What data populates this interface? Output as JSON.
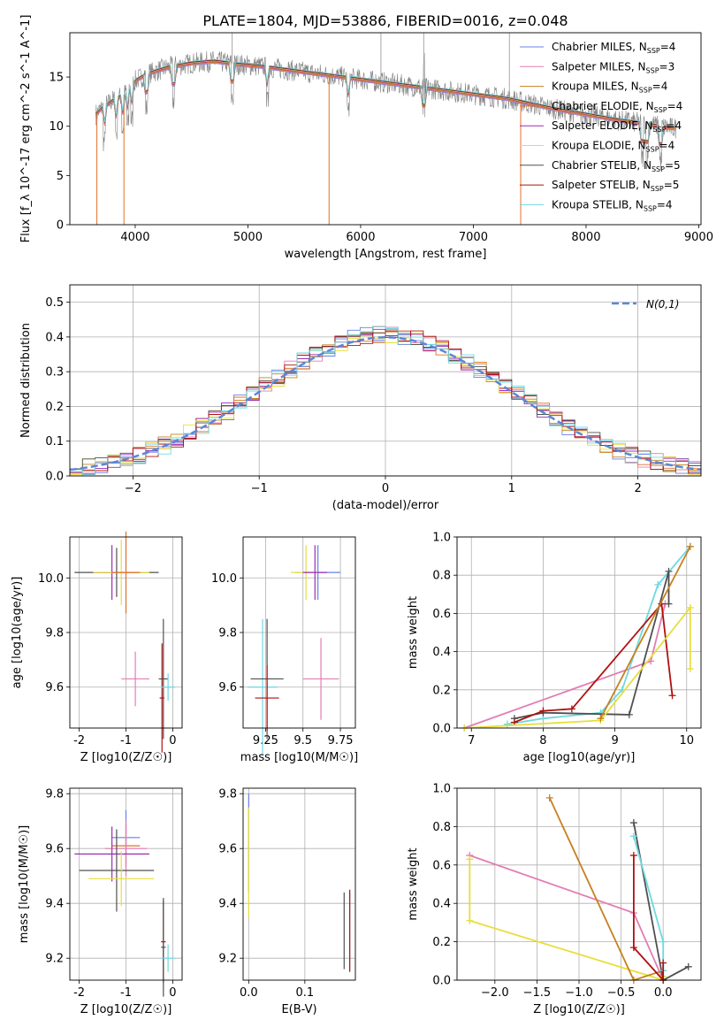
{
  "figure_title": "PLATE=1804, MJD=53886, FIBERID=0016, z=0.048",
  "series_colors": [
    "#6a7fe6",
    "#e37db4",
    "#c7801e",
    "#e0702a",
    "#9b2db5",
    "#e8de3a",
    "#505050",
    "#b01010",
    "#6ed9e0"
  ],
  "chart_data": [
    {
      "id": "spectrum",
      "type": "line",
      "xlabel": "wavelength [Angstrom, rest frame]",
      "ylabel": "Flux [f_λ 10^-17 erg cm^-2 s^-1 A^-1]",
      "xlim": [
        3420,
        9020
      ],
      "ylim": [
        0,
        19.5
      ],
      "xticks": [
        4000,
        5000,
        6000,
        7000,
        8000,
        9000
      ],
      "yticks": [
        0,
        5,
        10,
        15
      ],
      "legend_position": "upper-right",
      "legend": [
        {
          "name": "Chabrier MILES",
          "nssp": "4"
        },
        {
          "name": "Salpeter MILES",
          "nssp": "3"
        },
        {
          "name": "Kroupa MILES",
          "nssp": "4"
        },
        {
          "name": "Chabrier ELODIE",
          "nssp": "4"
        },
        {
          "name": "Salpeter ELODIE",
          "nssp": "4"
        },
        {
          "name": "Kroupa ELODIE",
          "nssp": "4"
        },
        {
          "name": "Chabrier STELIB",
          "nssp": "5"
        },
        {
          "name": "Salpeter STELIB",
          "nssp": "5"
        },
        {
          "name": "Kroupa STELIB",
          "nssp": "4"
        }
      ],
      "continuum": {
        "x": [
          3650,
          3700,
          3800,
          3900,
          4000,
          4100,
          4300,
          4500,
          4700,
          4900,
          5100,
          5300,
          5500,
          5700,
          5900,
          6100,
          6300,
          6500,
          6700,
          6900,
          7100,
          7300,
          7500,
          7700,
          7900,
          8100,
          8300,
          8500,
          8700,
          8800
        ],
        "y": [
          11.2,
          11.8,
          12.6,
          13.2,
          14.6,
          15.3,
          16.0,
          16.4,
          16.6,
          16.3,
          16.1,
          15.8,
          15.5,
          15.2,
          14.9,
          14.6,
          14.3,
          14.0,
          13.7,
          13.4,
          13.1,
          12.8,
          12.3,
          11.8,
          11.4,
          11.0,
          10.6,
          10.3,
          9.9,
          9.8
        ]
      },
      "data_line_color": "#808080"
    },
    {
      "id": "residuals",
      "type": "histogram",
      "xlabel": "(data-model)/error",
      "ylabel": "Normed distribution",
      "xlim": [
        -2.5,
        2.5
      ],
      "ylim": [
        0,
        0.55
      ],
      "xticks": [
        -2,
        -1,
        0,
        1,
        2
      ],
      "yticks": [
        0.0,
        0.1,
        0.2,
        0.3,
        0.4,
        0.5
      ],
      "legend_label": "N(0,1)",
      "legend_position": "upper-right",
      "bin_width": 0.1,
      "reference_curve": "gaussian(0,1)",
      "reference_color": "#5b87d6"
    },
    {
      "id": "age_vs_Z",
      "type": "errorbar",
      "xlabel": "Z [log10(Z/Z☉)]",
      "ylabel": "age  [log10(age/yr)]",
      "xlim": [
        -2.2,
        0.2
      ],
      "ylim": [
        9.45,
        10.15
      ],
      "xticks": [
        -2,
        -1,
        0
      ],
      "yticks": [
        9.6,
        9.8,
        10.0
      ],
      "points": [
        {
          "x": -1.2,
          "y": 10.02,
          "xerr": 0.9,
          "yerr": 0.09,
          "color": "#505050"
        },
        {
          "x": -1.3,
          "y": 10.02,
          "xerr": 0.4,
          "yerr": 0.1,
          "color": "#9b2db5"
        },
        {
          "x": -1.1,
          "y": 10.02,
          "xerr": 0.6,
          "yerr": 0.12,
          "color": "#e8de3a"
        },
        {
          "x": -1.0,
          "y": 10.02,
          "xerr": 0.3,
          "yerr": 0.15,
          "color": "#e0702a"
        },
        {
          "x": -0.8,
          "y": 9.63,
          "xerr": 0.3,
          "yerr": 0.1,
          "color": "#e37db4"
        },
        {
          "x": -0.23,
          "y": 9.56,
          "xerr": 0.05,
          "yerr": 0.2,
          "color": "#b01010"
        },
        {
          "x": -0.2,
          "y": 9.63,
          "xerr": 0.1,
          "yerr": 0.22,
          "color": "#505050"
        },
        {
          "x": -0.1,
          "y": 9.6,
          "xerr": 0.15,
          "yerr": 0.05,
          "color": "#6ed9e0"
        }
      ]
    },
    {
      "id": "age_vs_mass",
      "type": "errorbar",
      "xlabel": "mass [log10(M/M☉)]",
      "ylabel": "",
      "xlim": [
        9.1,
        9.85
      ],
      "ylim": [
        9.45,
        10.15
      ],
      "xticks": [
        9.25,
        9.5,
        9.75
      ],
      "yticks": [
        9.6,
        9.8,
        10.0
      ],
      "points": [
        {
          "x": 9.6,
          "y": 10.02,
          "xerr": 0.15,
          "yerr": 0.1,
          "color": "#6a7fe6"
        },
        {
          "x": 9.52,
          "y": 10.02,
          "xerr": 0.1,
          "yerr": 0.1,
          "color": "#e8de3a"
        },
        {
          "x": 9.58,
          "y": 10.02,
          "xerr": 0.08,
          "yerr": 0.1,
          "color": "#9b2db5"
        },
        {
          "x": 9.62,
          "y": 9.63,
          "xerr": 0.12,
          "yerr": 0.15,
          "color": "#e37db4"
        },
        {
          "x": 9.23,
          "y": 9.6,
          "xerr": 0.1,
          "yerr": 0.25,
          "color": "#6ed9e0"
        },
        {
          "x": 9.26,
          "y": 9.63,
          "xerr": 0.11,
          "yerr": 0.22,
          "color": "#505050"
        },
        {
          "x": 9.26,
          "y": 9.56,
          "xerr": 0.08,
          "yerr": 0.12,
          "color": "#b01010"
        }
      ]
    },
    {
      "id": "weight_vs_age",
      "type": "line",
      "xlabel": "age  [log10(age/yr)]",
      "ylabel": "mass weight",
      "xlim": [
        6.8,
        10.2
      ],
      "ylim": [
        0,
        1.0
      ],
      "xticks": [
        7,
        8,
        9,
        10
      ],
      "yticks": [
        0.0,
        0.2,
        0.4,
        0.6,
        0.8,
        1.0
      ],
      "series": [
        {
          "color": "#e37db4",
          "x": [
            6.9,
            9.5,
            9.7
          ],
          "y": [
            0.0,
            0.35,
            0.65
          ]
        },
        {
          "color": "#6ed9e0",
          "x": [
            7.5,
            8.0,
            8.8,
            9.1,
            9.6,
            10.05
          ],
          "y": [
            0.02,
            0.05,
            0.08,
            0.2,
            0.75,
            0.95
          ]
        },
        {
          "color": "#505050",
          "x": [
            7.6,
            8.0,
            9.2,
            9.75,
            9.75
          ],
          "y": [
            0.05,
            0.08,
            0.07,
            0.82,
            0.65
          ]
        },
        {
          "color": "#b01010",
          "x": [
            7.6,
            8.0,
            8.4,
            9.65,
            9.8
          ],
          "y": [
            0.03,
            0.09,
            0.1,
            0.65,
            0.17
          ]
        },
        {
          "color": "#e8de3a",
          "x": [
            6.9,
            8.8,
            10.05,
            10.05
          ],
          "y": [
            0.0,
            0.04,
            0.63,
            0.31
          ]
        },
        {
          "color": "#c7801e",
          "x": [
            8.8,
            10.05
          ],
          "y": [
            0.05,
            0.95
          ]
        }
      ]
    },
    {
      "id": "mass_vs_Z",
      "type": "errorbar",
      "xlabel": "Z [log10(Z/Z☉)]",
      "ylabel": "mass [log10(M/M☉)]",
      "xlim": [
        -2.2,
        0.2
      ],
      "ylim": [
        9.12,
        9.82
      ],
      "xticks": [
        -2,
        -1,
        0
      ],
      "yticks": [
        9.2,
        9.4,
        9.6,
        9.8
      ],
      "points": [
        {
          "x": -1.0,
          "y": 9.64,
          "xerr": 0.3,
          "yerr": 0.1,
          "color": "#6a7fe6"
        },
        {
          "x": -1.0,
          "y": 9.61,
          "xerr": 0.3,
          "yerr": 0.08,
          "color": "#e0702a"
        },
        {
          "x": -1.0,
          "y": 9.6,
          "xerr": 0.45,
          "yerr": 0.1,
          "color": "#e37db4"
        },
        {
          "x": -1.3,
          "y": 9.58,
          "xerr": 0.8,
          "yerr": 0.1,
          "color": "#9b2db5"
        },
        {
          "x": -1.2,
          "y": 9.52,
          "xerr": 0.8,
          "yerr": 0.15,
          "color": "#505050"
        },
        {
          "x": -1.1,
          "y": 9.49,
          "xerr": 0.7,
          "yerr": 0.1,
          "color": "#e8de3a"
        },
        {
          "x": -0.2,
          "y": 9.26,
          "xerr": 0.05,
          "yerr": 0.15,
          "color": "#b01010"
        },
        {
          "x": -0.2,
          "y": 9.24,
          "xerr": 0.05,
          "yerr": 0.18,
          "color": "#505050"
        },
        {
          "x": -0.1,
          "y": 9.2,
          "xerr": 0.15,
          "yerr": 0.05,
          "color": "#6ed9e0"
        }
      ]
    },
    {
      "id": "mass_vs_ebv",
      "type": "errorbar",
      "xlabel": "E(B-V)",
      "ylabel": "",
      "xlim": [
        -0.01,
        0.19
      ],
      "ylim": [
        9.12,
        9.82
      ],
      "xticks": [
        0.0,
        0.1
      ],
      "yticks": [
        9.2,
        9.4,
        9.6,
        9.8
      ],
      "points": [
        {
          "x": 0.0,
          "y": 9.62,
          "xerr": 0.0,
          "yerr": 0.18,
          "color": "#6a7fe6"
        },
        {
          "x": 0.0,
          "y": 9.55,
          "xerr": 0.0,
          "yerr": 0.2,
          "color": "#e8de3a"
        },
        {
          "x": 0.17,
          "y": 9.3,
          "xerr": 0.0,
          "yerr": 0.14,
          "color": "#505050"
        },
        {
          "x": 0.18,
          "y": 9.3,
          "xerr": 0.0,
          "yerr": 0.14,
          "color": "#6ed9e0"
        },
        {
          "x": 0.18,
          "y": 9.3,
          "xerr": 0.0,
          "yerr": 0.15,
          "color": "#b01010"
        }
      ]
    },
    {
      "id": "weight_vs_Z",
      "type": "line",
      "xlabel": "Z [log10(Z/Z☉)]",
      "ylabel": "mass weight",
      "xlim": [
        -2.45,
        0.45
      ],
      "ylim": [
        0,
        1.0
      ],
      "xticks": [
        -2.0,
        -1.5,
        -1.0,
        -0.5,
        0.0
      ],
      "yticks": [
        0.0,
        0.2,
        0.4,
        0.6,
        0.8,
        1.0
      ],
      "series": [
        {
          "color": "#e37db4",
          "x": [
            -2.3,
            -0.35,
            0.0
          ],
          "y": [
            0.65,
            0.35,
            0.0
          ]
        },
        {
          "color": "#e8de3a",
          "x": [
            -2.3,
            -2.3,
            0.0,
            0.0
          ],
          "y": [
            0.63,
            0.31,
            0.0,
            0.02
          ]
        },
        {
          "color": "#c7801e",
          "x": [
            -1.35,
            -0.35,
            0.0
          ],
          "y": [
            0.95,
            0.0,
            0.05
          ]
        },
        {
          "color": "#505050",
          "x": [
            -0.35,
            0.0,
            0.3
          ],
          "y": [
            0.82,
            0.0,
            0.07
          ]
        },
        {
          "color": "#6ed9e0",
          "x": [
            -0.35,
            0.0,
            0.0
          ],
          "y": [
            0.75,
            0.2,
            0.05
          ]
        },
        {
          "color": "#b01010",
          "x": [
            -0.35,
            -0.35,
            0.0,
            0.0
          ],
          "y": [
            0.65,
            0.17,
            0.0,
            0.09
          ]
        }
      ]
    }
  ]
}
